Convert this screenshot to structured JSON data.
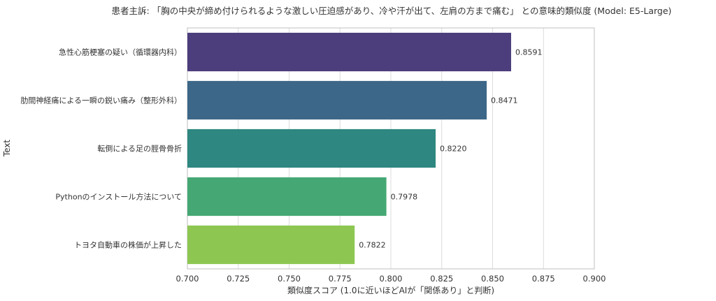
{
  "chart_data": {
    "type": "bar",
    "orientation": "horizontal",
    "title": "患者主訴: 「胸の中央が締め付けられるような激しい圧迫感があり、冷や汗が出て、左肩の方まで痛む」 との意味的類似度 (Model: E5-Large)",
    "xlabel": "類似度スコア (1.0に近いほどAIが「関係あり」と判断)",
    "ylabel": "Text",
    "categories": [
      "急性心筋梗塞の疑い（循環器内科）",
      "肋間神経痛による一瞬の鋭い痛み（整形外科）",
      "転倒による足の脛骨骨折",
      "Pythonのインストール方法について",
      "トヨタ自動車の株価が上昇した"
    ],
    "values": [
      0.8591,
      0.8471,
      0.822,
      0.7978,
      0.7822
    ],
    "value_labels": [
      "0.8591",
      "0.8471",
      "0.8220",
      "0.7978",
      "0.7822"
    ],
    "colors": [
      "#4c3d7d",
      "#3d6788",
      "#2e8780",
      "#45a874",
      "#8dc752"
    ],
    "xlim": [
      0.7,
      0.9
    ],
    "xticks": [
      "0.700",
      "0.725",
      "0.750",
      "0.775",
      "0.800",
      "0.825",
      "0.850",
      "0.875",
      "0.900"
    ],
    "grid": true
  }
}
